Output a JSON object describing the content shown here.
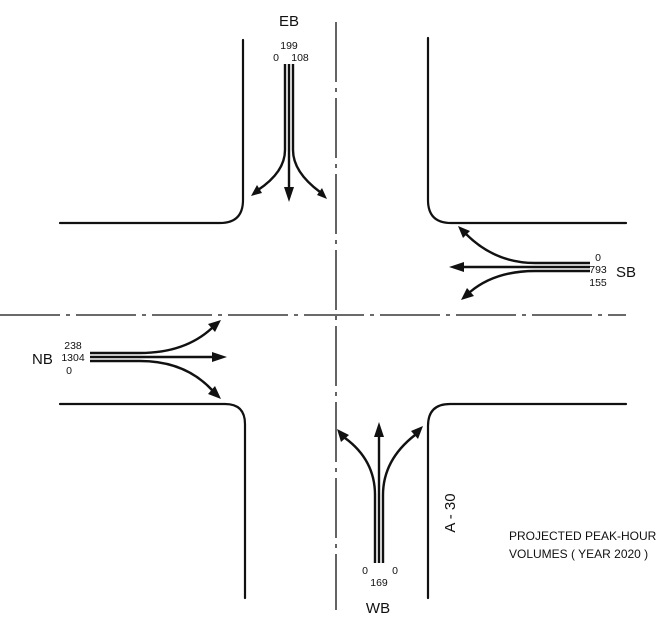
{
  "approaches": {
    "eb": {
      "label": "EB",
      "volumes": {
        "top": "199",
        "left": "0",
        "right": "108"
      }
    },
    "sb": {
      "label": "SB",
      "volumes": {
        "top": "0",
        "middle": "793",
        "bottom": "155"
      }
    },
    "nb": {
      "label": "NB",
      "volumes": {
        "top": "238",
        "middle": "1304",
        "bottom": "0"
      }
    },
    "wb": {
      "label": "WB",
      "volumes": {
        "left": "0",
        "middle": "169",
        "right": "0"
      }
    }
  },
  "road_label": "A - 30",
  "note": {
    "line1": "PROJECTED PEAK-HOUR",
    "line2": "VOLUMES ( YEAR 2020 )"
  }
}
